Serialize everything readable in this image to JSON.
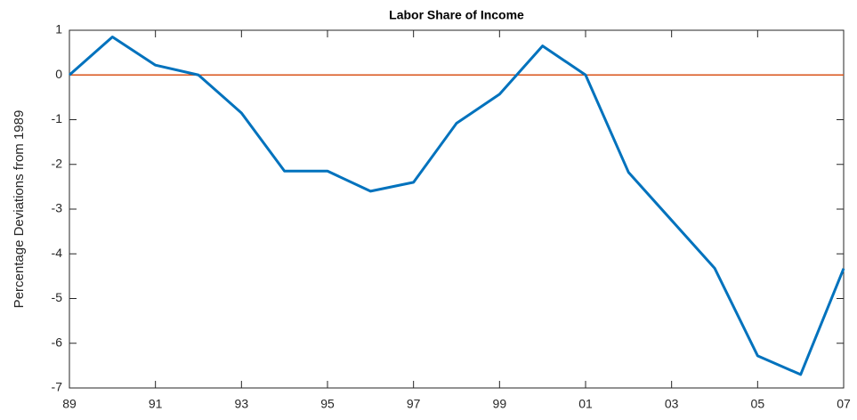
{
  "chart_data": {
    "type": "line",
    "title": "Labor Share of Income",
    "ylabel": "Percentage Deviations from 1989",
    "categories": [
      "89",
      null,
      "91",
      null,
      "93",
      null,
      "95",
      null,
      "97",
      null,
      "99",
      null,
      "01",
      null,
      "03",
      null,
      "05",
      null,
      "07"
    ],
    "series": [
      {
        "name": "Labor Share",
        "color": "#0072bd",
        "values": [
          0,
          0.85,
          0.22,
          0,
          -0.85,
          -2.15,
          -2.15,
          -2.6,
          -2.4,
          -1.08,
          -0.43,
          0.65,
          0,
          -2.18,
          -3.25,
          -4.32,
          -6.28,
          -6.7,
          -4.33
        ]
      }
    ],
    "reference_line": {
      "value": 0,
      "color": "#d95319"
    },
    "ylim": [
      -7,
      1
    ],
    "yticks": [
      -7,
      -6,
      -5,
      -4,
      -3,
      -2,
      -1,
      0,
      1
    ],
    "grid": false
  }
}
